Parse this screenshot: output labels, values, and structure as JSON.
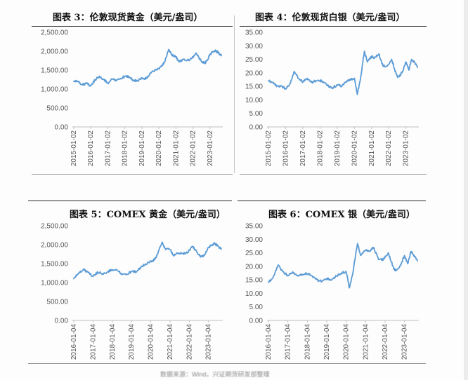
{
  "charts_meta": {
    "titles": [
      "图表 3：伦敦现货黄金（美元/盎司）",
      "图表 4：伦敦现货白银（美元/盎司）",
      "图表 5：COMEX 黄金（美元/盎司）",
      "图表 6：COMEX 银（美元/盎司）"
    ],
    "line_color": "#5b9bd5",
    "footer_text": "数据来源：Wind，兴证期货研发部整理"
  },
  "chart_data": [
    {
      "type": "line",
      "title": "图表 3：伦敦现货黄金（美元/盎司）",
      "ylim": [
        0,
        2500
      ],
      "yticks": [
        "0.00",
        "500.00",
        "1,000.00",
        "1,500.00",
        "2,000.00",
        "2,500.00"
      ],
      "xticks": [
        "2015-01-02",
        "2016-01-02",
        "2017-01-02",
        "2018-01-02",
        "2019-01-02",
        "2020-01-02",
        "2021-01-02",
        "2022-01-02",
        "2023-01-02"
      ],
      "x": [
        "2015-01",
        "2015-04",
        "2015-07",
        "2015-10",
        "2016-01",
        "2016-04",
        "2016-07",
        "2016-10",
        "2017-01",
        "2017-04",
        "2017-07",
        "2017-10",
        "2018-01",
        "2018-04",
        "2018-07",
        "2018-10",
        "2019-01",
        "2019-04",
        "2019-07",
        "2019-10",
        "2020-01",
        "2020-03",
        "2020-05",
        "2020-08",
        "2020-10",
        "2021-01",
        "2021-03",
        "2021-06",
        "2021-09",
        "2021-12",
        "2022-03",
        "2022-05",
        "2022-07",
        "2022-09",
        "2022-11",
        "2023-01",
        "2023-03",
        "2023-05",
        "2023-07",
        "2023-09"
      ],
      "series": [
        {
          "values": [
            1200,
            1200,
            1110,
            1150,
            1080,
            1240,
            1340,
            1260,
            1150,
            1270,
            1240,
            1280,
            1330,
            1320,
            1230,
            1220,
            1290,
            1280,
            1420,
            1490,
            1550,
            1600,
            1720,
            2050,
            1900,
            1860,
            1720,
            1780,
            1760,
            1800,
            1950,
            1840,
            1730,
            1680,
            1750,
            1920,
            1980,
            2020,
            1950,
            1880
          ]
        }
      ]
    },
    {
      "type": "line",
      "title": "图表 4：伦敦现货白银（美元/盎司）",
      "ylim": [
        0,
        35
      ],
      "yticks": [
        "0.00",
        "5.00",
        "10.00",
        "15.00",
        "20.00",
        "25.00",
        "30.00",
        "35.00"
      ],
      "xticks": [
        "2015-01-02",
        "2016-01-02",
        "2017-01-02",
        "2018-01-02",
        "2019-01-02",
        "2020-01-02",
        "2021-01-02",
        "2022-01-02",
        "2023-01-02"
      ],
      "x": [
        "2015-01",
        "2015-04",
        "2015-07",
        "2015-10",
        "2016-01",
        "2016-04",
        "2016-07",
        "2016-10",
        "2017-01",
        "2017-04",
        "2017-07",
        "2017-10",
        "2018-01",
        "2018-04",
        "2018-07",
        "2018-10",
        "2019-01",
        "2019-04",
        "2019-07",
        "2019-10",
        "2020-01",
        "2020-03",
        "2020-05",
        "2020-08",
        "2020-10",
        "2021-01",
        "2021-03",
        "2021-06",
        "2021-09",
        "2021-12",
        "2022-03",
        "2022-05",
        "2022-07",
        "2022-09",
        "2022-11",
        "2023-01",
        "2023-03",
        "2023-05",
        "2023-07",
        "2023-09"
      ],
      "series": [
        {
          "values": [
            17.0,
            16.5,
            15.0,
            15.2,
            14.0,
            16.0,
            20.5,
            18.0,
            16.5,
            18.0,
            16.5,
            17.0,
            17.2,
            16.5,
            15.0,
            14.5,
            15.5,
            15.0,
            16.5,
            17.5,
            18.0,
            12.0,
            17.0,
            28.0,
            24.0,
            26.0,
            25.5,
            27.0,
            22.5,
            22.5,
            25.0,
            21.5,
            18.5,
            19.0,
            21.0,
            24.0,
            21.0,
            25.0,
            24.0,
            22.0
          ]
        }
      ]
    },
    {
      "type": "line",
      "title": "图表 5：COMEX 黄金（美元/盎司）",
      "ylim": [
        0,
        2500
      ],
      "yticks": [
        "0.00",
        "500.00",
        "1,000.00",
        "1,500.00",
        "2,000.00",
        "2,500.00"
      ],
      "xticks": [
        "2016-01-04",
        "2017-01-04",
        "2018-01-04",
        "2019-01-04",
        "2020-01-04",
        "2021-01-04",
        "2022-01-04",
        "2023-01-04"
      ],
      "x": [
        "2016-01",
        "2016-04",
        "2016-07",
        "2016-10",
        "2017-01",
        "2017-04",
        "2017-07",
        "2017-10",
        "2018-01",
        "2018-04",
        "2018-07",
        "2018-10",
        "2019-01",
        "2019-04",
        "2019-07",
        "2019-10",
        "2020-01",
        "2020-03",
        "2020-05",
        "2020-08",
        "2020-10",
        "2021-01",
        "2021-03",
        "2021-06",
        "2021-09",
        "2021-12",
        "2022-03",
        "2022-05",
        "2022-07",
        "2022-09",
        "2022-11",
        "2023-01",
        "2023-03",
        "2023-05",
        "2023-07",
        "2023-09"
      ],
      "series": [
        {
          "values": [
            1100,
            1240,
            1350,
            1260,
            1160,
            1270,
            1240,
            1280,
            1340,
            1330,
            1230,
            1220,
            1290,
            1280,
            1420,
            1490,
            1560,
            1600,
            1730,
            2060,
            1900,
            1870,
            1720,
            1780,
            1760,
            1800,
            1960,
            1850,
            1730,
            1680,
            1760,
            1930,
            1990,
            2030,
            1960,
            1890
          ]
        }
      ]
    },
    {
      "type": "line",
      "title": "图表 6：COMEX 银（美元/盎司）",
      "ylim": [
        0,
        35
      ],
      "yticks": [
        "0.00",
        "5.00",
        "10.00",
        "15.00",
        "20.00",
        "25.00",
        "30.00",
        "35.00"
      ],
      "xticks": [
        "2016-01-04",
        "2017-01-04",
        "2018-01-04",
        "2019-01-04",
        "2020-01-04",
        "2021-01-04",
        "2022-01-04",
        "2023-01-04"
      ],
      "x": [
        "2016-01",
        "2016-04",
        "2016-07",
        "2016-10",
        "2017-01",
        "2017-04",
        "2017-07",
        "2017-10",
        "2018-01",
        "2018-04",
        "2018-07",
        "2018-10",
        "2019-01",
        "2019-04",
        "2019-07",
        "2019-10",
        "2020-01",
        "2020-03",
        "2020-05",
        "2020-08",
        "2020-10",
        "2021-01",
        "2021-03",
        "2021-06",
        "2021-09",
        "2021-12",
        "2022-03",
        "2022-05",
        "2022-07",
        "2022-09",
        "2022-11",
        "2023-01",
        "2023-03",
        "2023-05",
        "2023-07",
        "2023-09"
      ],
      "series": [
        {
          "values": [
            14.0,
            16.0,
            20.5,
            18.0,
            16.5,
            18.0,
            16.5,
            17.0,
            17.2,
            16.5,
            15.0,
            14.5,
            15.5,
            15.0,
            16.5,
            17.5,
            18.0,
            12.0,
            17.0,
            28.5,
            24.0,
            26.0,
            25.5,
            27.0,
            22.5,
            22.5,
            25.0,
            21.5,
            18.5,
            19.0,
            21.0,
            24.0,
            21.0,
            25.5,
            24.0,
            22.0
          ]
        }
      ]
    }
  ]
}
